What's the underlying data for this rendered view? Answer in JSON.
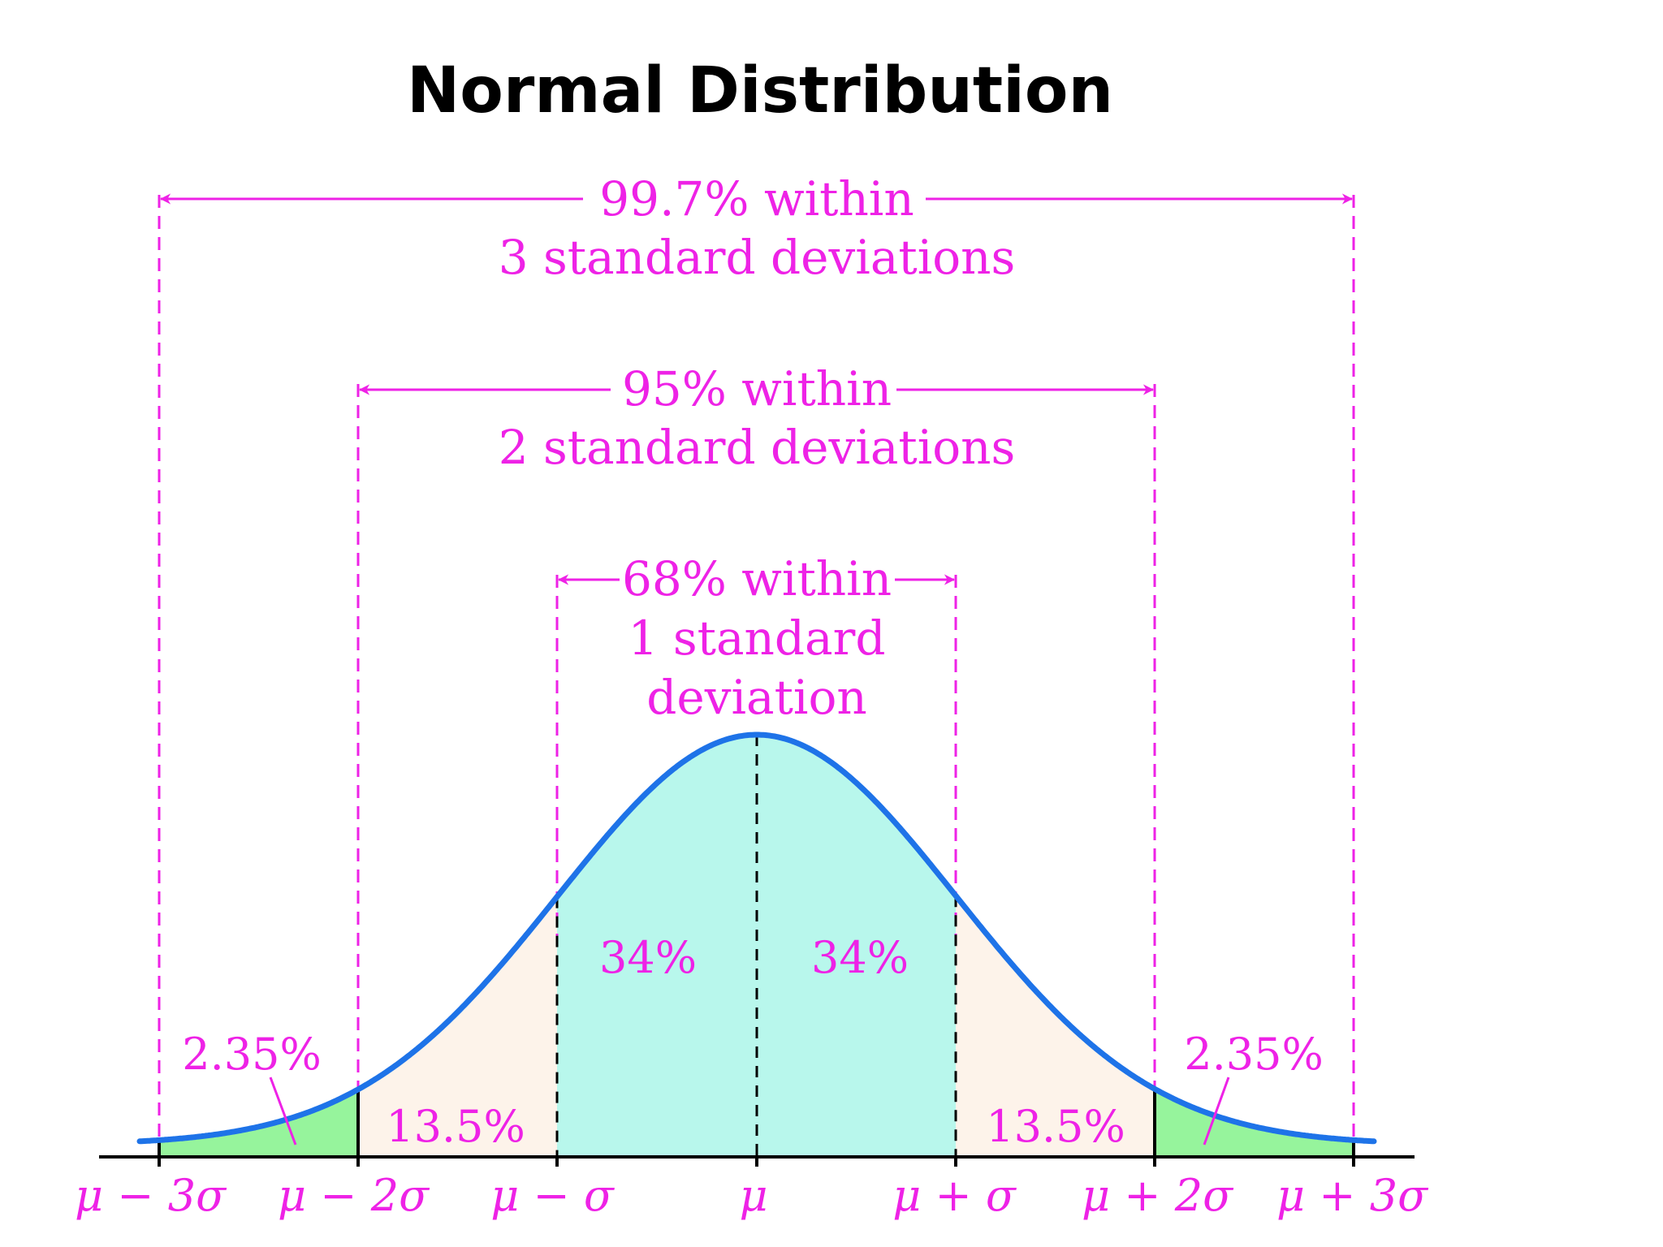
{
  "title": "Normal Distribution",
  "colors": {
    "accent": "#ee22e6",
    "curve": "#1e73e8",
    "fill_inner": "#b8f7ec",
    "fill_middle": "#fdf3ea",
    "fill_tail": "#96f49c",
    "axis": "#000000"
  },
  "spans": [
    {
      "level": 3,
      "line1": "99.7% within",
      "line2": "3 standard deviations"
    },
    {
      "level": 2,
      "line1": "95% within",
      "line2": "2 standard deviations"
    },
    {
      "level": 1,
      "line1": "68% within",
      "line2": "1 standard",
      "line3": "deviation"
    }
  ],
  "regions": {
    "tail_left": "2.35%",
    "middle_left": "13.5%",
    "inner_left": "34%",
    "inner_right": "34%",
    "middle_right": "13.5%",
    "tail_right": "2.35%"
  },
  "tick_labels": [
    "μ − 3σ",
    "μ − 2σ",
    "μ − σ",
    "μ",
    "μ + σ",
    "μ + 2σ",
    "μ + 3σ"
  ]
}
